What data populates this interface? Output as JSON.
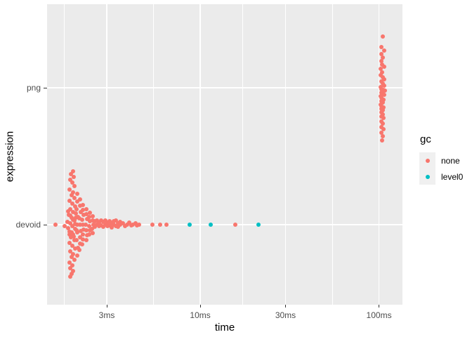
{
  "chart_data": {
    "type": "scatter",
    "title": "",
    "xlabel": "time",
    "ylabel": "expression",
    "x_scale": "log10",
    "x_ticks": [
      {
        "label": "3ms",
        "ms": 3
      },
      {
        "label": "10ms",
        "ms": 10
      },
      {
        "label": "30ms",
        "ms": 30
      },
      {
        "label": "100ms",
        "ms": 100
      }
    ],
    "x_minor_ms": [
      1.732,
      5.477,
      17.321,
      54.772
    ],
    "x_range_ms": [
      1.39,
      135
    ],
    "y_categories": [
      {
        "label": "png"
      },
      {
        "label": "devoid"
      }
    ],
    "grid": true,
    "legend": {
      "title": "gc",
      "position": "right",
      "entries": [
        {
          "label": "none",
          "color": "#F8766D"
        },
        {
          "label": "level0",
          "color": "#00BFC4"
        }
      ]
    },
    "series": [
      {
        "name": "none",
        "color": "#F8766D",
        "groups": [
          {
            "expression": "devoid",
            "points": [
              [
                1.55,
                0
              ],
              [
                1.74,
                2
              ],
              [
                1.94,
                -76
              ],
              [
                1.89,
                -72
              ],
              [
                1.96,
                -68
              ],
              [
                1.87,
                -64
              ],
              [
                1.93,
                -60
              ],
              [
                1.98,
                -55
              ],
              [
                1.86,
                -50
              ],
              [
                1.94,
                -46
              ],
              [
                1.9,
                -42
              ],
              [
                1.97,
                -38
              ],
              [
                1.85,
                -34
              ],
              [
                1.92,
                -30
              ],
              [
                1.99,
                -26
              ],
              [
                1.88,
                -22
              ],
              [
                1.95,
                -18
              ],
              [
                1.84,
                -14
              ],
              [
                1.91,
                -10
              ],
              [
                1.98,
                -6
              ],
              [
                1.87,
                -2
              ],
              [
                1.93,
                2
              ],
              [
                2.0,
                6
              ],
              [
                1.86,
                10
              ],
              [
                1.94,
                14
              ],
              [
                1.89,
                18
              ],
              [
                1.97,
                22
              ],
              [
                1.85,
                26
              ],
              [
                1.92,
                30
              ],
              [
                1.99,
                34
              ],
              [
                1.88,
                38
              ],
              [
                1.95,
                42
              ],
              [
                1.9,
                46
              ],
              [
                1.97,
                50
              ],
              [
                1.86,
                54
              ],
              [
                1.93,
                58
              ],
              [
                1.88,
                62
              ],
              [
                1.95,
                66
              ],
              [
                1.91,
                70
              ],
              [
                1.87,
                74
              ],
              [
                1.82,
                -19
              ],
              [
                1.88,
                -13
              ],
              [
                1.94,
                -7
              ],
              [
                2.0,
                -1
              ],
              [
                1.83,
                5
              ],
              [
                1.9,
                11
              ],
              [
                1.96,
                17
              ],
              [
                2.02,
                -16
              ],
              [
                1.81,
                -4
              ],
              [
                2.03,
                8
              ],
              [
                1.85,
                14
              ],
              [
                2.01,
                -10
              ],
              [
                2.05,
                -44
              ],
              [
                2.06,
                -33
              ],
              [
                2.04,
                -22
              ],
              [
                2.07,
                -11
              ],
              [
                2.05,
                0
              ],
              [
                2.06,
                11
              ],
              [
                2.04,
                22
              ],
              [
                2.07,
                33
              ],
              [
                2.05,
                44
              ],
              [
                2.13,
                -36
              ],
              [
                2.12,
                -27
              ],
              [
                2.14,
                -18
              ],
              [
                2.11,
                -9
              ],
              [
                2.13,
                0
              ],
              [
                2.14,
                9
              ],
              [
                2.12,
                18
              ],
              [
                2.13,
                27
              ],
              [
                2.11,
                36
              ],
              [
                2.21,
                -28
              ],
              [
                2.2,
                -21
              ],
              [
                2.22,
                -14
              ],
              [
                2.19,
                -7
              ],
              [
                2.21,
                0
              ],
              [
                2.22,
                7
              ],
              [
                2.2,
                14
              ],
              [
                2.21,
                21
              ],
              [
                2.19,
                28
              ],
              [
                2.31,
                -22
              ],
              [
                2.3,
                -15
              ],
              [
                2.32,
                -8
              ],
              [
                2.29,
                0
              ],
              [
                2.31,
                8
              ],
              [
                2.32,
                15
              ],
              [
                2.3,
                22
              ],
              [
                2.41,
                -17
              ],
              [
                2.4,
                -11
              ],
              [
                2.42,
                -5
              ],
              [
                2.39,
                2
              ],
              [
                2.41,
                8
              ],
              [
                2.4,
                14
              ],
              [
                2.51,
                -12
              ],
              [
                2.5,
                -6
              ],
              [
                2.52,
                0
              ],
              [
                2.49,
                6
              ],
              [
                2.51,
                12
              ],
              [
                2.57,
                -5
              ],
              [
                2.57,
                3
              ],
              [
                2.65,
                0
              ],
              [
                2.65,
                -6
              ],
              [
                2.72,
                2
              ],
              [
                2.72,
                -3
              ],
              [
                2.79,
                -6
              ],
              [
                2.79,
                1
              ],
              [
                2.87,
                -4
              ],
              [
                2.87,
                3
              ],
              [
                2.95,
                0
              ],
              [
                2.95,
                -6
              ],
              [
                3.03,
                2
              ],
              [
                3.03,
                -3
              ],
              [
                3.11,
                -5
              ],
              [
                3.11,
                1
              ],
              [
                3.2,
                -2
              ],
              [
                3.2,
                4
              ],
              [
                3.28,
                0
              ],
              [
                3.28,
                -5
              ],
              [
                3.37,
                2
              ],
              [
                3.37,
                -6
              ],
              [
                3.47,
                -2
              ],
              [
                3.47,
                3
              ],
              [
                3.56,
                0
              ],
              [
                3.56,
                -4
              ],
              [
                3.69,
                -2
              ],
              [
                3.8,
                2
              ],
              [
                3.91,
                0
              ],
              [
                4.0,
                -3
              ],
              [
                4.1,
                1
              ],
              [
                4.21,
                0
              ],
              [
                4.33,
                -2
              ],
              [
                4.44,
                1
              ],
              [
                4.53,
                0
              ],
              [
                5.4,
                0
              ],
              [
                5.97,
                0
              ],
              [
                6.47,
                0
              ],
              [
                15.7,
                0
              ]
            ]
          },
          {
            "expression": "png",
            "points": [
              [
                105.0,
                -73
              ],
              [
                103.1,
                -58
              ],
              [
                106.9,
                -53
              ],
              [
                103.1,
                -48
              ],
              [
                105.0,
                -43
              ],
              [
                103.1,
                -38
              ],
              [
                104.1,
                -33
              ],
              [
                106.9,
                -30
              ],
              [
                102.2,
                -27
              ],
              [
                104.1,
                -22
              ],
              [
                102.2,
                -18
              ],
              [
                105.0,
                -15
              ],
              [
                106.9,
                -12
              ],
              [
                103.1,
                -9
              ],
              [
                105.0,
                -6
              ],
              [
                106.9,
                -3
              ],
              [
                102.2,
                -1
              ],
              [
                103.1,
                2
              ],
              [
                106.0,
                3
              ],
              [
                107.9,
                4
              ],
              [
                103.1,
                7
              ],
              [
                105.0,
                8
              ],
              [
                106.9,
                10
              ],
              [
                102.2,
                12
              ],
              [
                103.1,
                14
              ],
              [
                106.0,
                17
              ],
              [
                103.1,
                19
              ],
              [
                105.0,
                21
              ],
              [
                102.2,
                24
              ],
              [
                103.1,
                26
              ],
              [
                106.0,
                28
              ],
              [
                103.1,
                30
              ],
              [
                105.0,
                32
              ],
              [
                103.1,
                35
              ],
              [
                105.0,
                38
              ],
              [
                103.1,
                41
              ],
              [
                106.0,
                43
              ],
              [
                103.1,
                48
              ],
              [
                105.0,
                51
              ],
              [
                103.1,
                56
              ],
              [
                106.0,
                59
              ],
              [
                103.1,
                64
              ],
              [
                105.0,
                69
              ],
              [
                104.1,
                75
              ]
            ]
          }
        ]
      },
      {
        "name": "level0",
        "color": "#00BFC4",
        "groups": [
          {
            "expression": "devoid",
            "points": [
              [
                8.73,
                0
              ],
              [
                11.45,
                0
              ],
              [
                21.2,
                0
              ]
            ]
          }
        ]
      }
    ]
  },
  "colors": {
    "panel_background": "#EBEBEB",
    "gridline": "#FFFFFF",
    "tick_text": "#4D4D4D",
    "axis_title_text": "#000000",
    "legend_key_background": "#F0F0F0"
  }
}
